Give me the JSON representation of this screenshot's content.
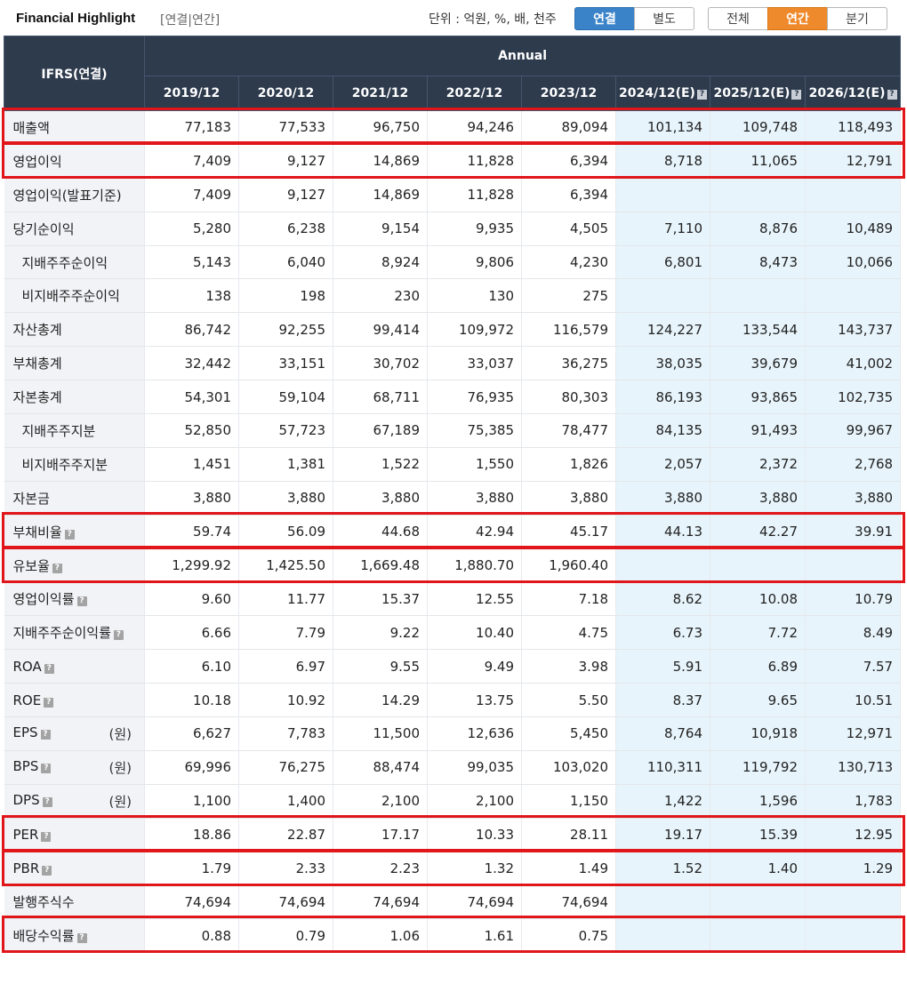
{
  "header": {
    "title": "Financial Highlight",
    "subtitle": "[연결|연간]",
    "unit_label": "단위 : 억원, %, 배, 천주",
    "consol_buttons": [
      "연결",
      "별도"
    ],
    "period_buttons": [
      "전체",
      "연간",
      "분기"
    ],
    "active_consol": "연결",
    "active_period": "연간"
  },
  "table": {
    "corner_label": "IFRS(연결)",
    "group_label": "Annual",
    "columns": [
      "2019/12",
      "2020/12",
      "2021/12",
      "2022/12",
      "2023/12",
      "2024/12(E)",
      "2025/12(E)",
      "2026/12(E)"
    ],
    "estimate_marker": "?",
    "rows": [
      {
        "label": "매출액",
        "indent": false,
        "help": false,
        "unit": "",
        "values": [
          "77,183",
          "77,533",
          "96,750",
          "94,246",
          "89,094",
          "101,134",
          "109,748",
          "118,493"
        ]
      },
      {
        "label": "영업이익",
        "indent": false,
        "help": false,
        "unit": "",
        "values": [
          "7,409",
          "9,127",
          "14,869",
          "11,828",
          "6,394",
          "8,718",
          "11,065",
          "12,791"
        ]
      },
      {
        "label": "영업이익(발표기준)",
        "indent": false,
        "help": false,
        "unit": "",
        "values": [
          "7,409",
          "9,127",
          "14,869",
          "11,828",
          "6,394",
          "",
          "",
          ""
        ]
      },
      {
        "label": "당기순이익",
        "indent": false,
        "help": false,
        "unit": "",
        "values": [
          "5,280",
          "6,238",
          "9,154",
          "9,935",
          "4,505",
          "7,110",
          "8,876",
          "10,489"
        ]
      },
      {
        "label": "지배주주순이익",
        "indent": true,
        "help": false,
        "unit": "",
        "values": [
          "5,143",
          "6,040",
          "8,924",
          "9,806",
          "4,230",
          "6,801",
          "8,473",
          "10,066"
        ]
      },
      {
        "label": "비지배주주순이익",
        "indent": true,
        "help": false,
        "unit": "",
        "values": [
          "138",
          "198",
          "230",
          "130",
          "275",
          "",
          "",
          ""
        ]
      },
      {
        "label": "자산총계",
        "indent": false,
        "help": false,
        "unit": "",
        "values": [
          "86,742",
          "92,255",
          "99,414",
          "109,972",
          "116,579",
          "124,227",
          "133,544",
          "143,737"
        ]
      },
      {
        "label": "부채총계",
        "indent": false,
        "help": false,
        "unit": "",
        "values": [
          "32,442",
          "33,151",
          "30,702",
          "33,037",
          "36,275",
          "38,035",
          "39,679",
          "41,002"
        ]
      },
      {
        "label": "자본총계",
        "indent": false,
        "help": false,
        "unit": "",
        "values": [
          "54,301",
          "59,104",
          "68,711",
          "76,935",
          "80,303",
          "86,193",
          "93,865",
          "102,735"
        ]
      },
      {
        "label": "지배주주지분",
        "indent": true,
        "help": false,
        "unit": "",
        "values": [
          "52,850",
          "57,723",
          "67,189",
          "75,385",
          "78,477",
          "84,135",
          "91,493",
          "99,967"
        ]
      },
      {
        "label": "비지배주주지분",
        "indent": true,
        "help": false,
        "unit": "",
        "values": [
          "1,451",
          "1,381",
          "1,522",
          "1,550",
          "1,826",
          "2,057",
          "2,372",
          "2,768"
        ]
      },
      {
        "label": "자본금",
        "indent": false,
        "help": false,
        "unit": "",
        "values": [
          "3,880",
          "3,880",
          "3,880",
          "3,880",
          "3,880",
          "3,880",
          "3,880",
          "3,880"
        ]
      },
      {
        "label": "부채비율",
        "indent": false,
        "help": true,
        "unit": "",
        "values": [
          "59.74",
          "56.09",
          "44.68",
          "42.94",
          "45.17",
          "44.13",
          "42.27",
          "39.91"
        ]
      },
      {
        "label": "유보율",
        "indent": false,
        "help": true,
        "unit": "",
        "values": [
          "1,299.92",
          "1,425.50",
          "1,669.48",
          "1,880.70",
          "1,960.40",
          "",
          "",
          ""
        ]
      },
      {
        "label": "영업이익률",
        "indent": false,
        "help": true,
        "unit": "",
        "values": [
          "9.60",
          "11.77",
          "15.37",
          "12.55",
          "7.18",
          "8.62",
          "10.08",
          "10.79"
        ]
      },
      {
        "label": "지배주주순이익률",
        "indent": false,
        "help": true,
        "unit": "",
        "values": [
          "6.66",
          "7.79",
          "9.22",
          "10.40",
          "4.75",
          "6.73",
          "7.72",
          "8.49"
        ]
      },
      {
        "label": "ROA",
        "indent": false,
        "help": true,
        "unit": "",
        "values": [
          "6.10",
          "6.97",
          "9.55",
          "9.49",
          "3.98",
          "5.91",
          "6.89",
          "7.57"
        ]
      },
      {
        "label": "ROE",
        "indent": false,
        "help": true,
        "unit": "",
        "values": [
          "10.18",
          "10.92",
          "14.29",
          "13.75",
          "5.50",
          "8.37",
          "9.65",
          "10.51"
        ]
      },
      {
        "label": "EPS",
        "indent": false,
        "help": true,
        "unit": "(원)",
        "values": [
          "6,627",
          "7,783",
          "11,500",
          "12,636",
          "5,450",
          "8,764",
          "10,918",
          "12,971"
        ]
      },
      {
        "label": "BPS",
        "indent": false,
        "help": true,
        "unit": "(원)",
        "values": [
          "69,996",
          "76,275",
          "88,474",
          "99,035",
          "103,020",
          "110,311",
          "119,792",
          "130,713"
        ]
      },
      {
        "label": "DPS",
        "indent": false,
        "help": true,
        "unit": "(원)",
        "values": [
          "1,100",
          "1,400",
          "2,100",
          "2,100",
          "1,150",
          "1,422",
          "1,596",
          "1,783"
        ]
      },
      {
        "label": "PER",
        "indent": false,
        "help": true,
        "unit": "",
        "values": [
          "18.86",
          "22.87",
          "17.17",
          "10.33",
          "28.11",
          "19.17",
          "15.39",
          "12.95"
        ]
      },
      {
        "label": "PBR",
        "indent": false,
        "help": true,
        "unit": "",
        "values": [
          "1.79",
          "2.33",
          "2.23",
          "1.32",
          "1.49",
          "1.52",
          "1.40",
          "1.29"
        ]
      },
      {
        "label": "발행주식수",
        "indent": false,
        "help": false,
        "unit": "",
        "values": [
          "74,694",
          "74,694",
          "74,694",
          "74,694",
          "74,694",
          "",
          "",
          ""
        ]
      },
      {
        "label": "배당수익률",
        "indent": false,
        "help": true,
        "unit": "",
        "values": [
          "0.88",
          "0.79",
          "1.06",
          "1.61",
          "0.75",
          "",
          "",
          ""
        ]
      }
    ],
    "highlighted_rows": [
      "매출액",
      "영업이익",
      "부채비율",
      "유보율",
      "PER",
      "PBR",
      "배당수익률"
    ]
  }
}
